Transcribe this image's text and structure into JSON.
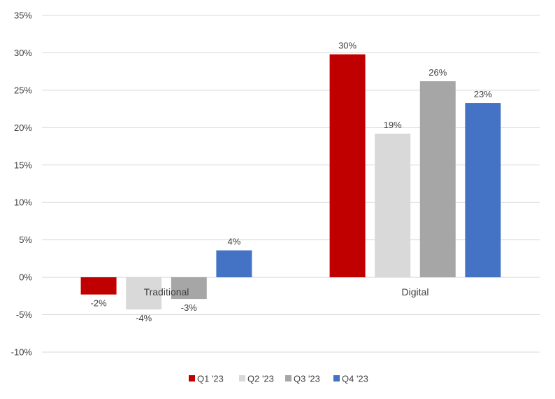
{
  "chart_data": {
    "type": "bar",
    "categories": [
      "Traditional",
      "Digital"
    ],
    "series": [
      {
        "name": "Q1 '23",
        "values": [
          -2.3,
          29.8
        ],
        "labels": [
          "-2%",
          "30%"
        ],
        "color": "#c00000"
      },
      {
        "name": "Q2 '23",
        "values": [
          -4.3,
          19.2
        ],
        "labels": [
          "-4%",
          "19%"
        ],
        "color": "#d9d9d9"
      },
      {
        "name": "Q3 '23",
        "values": [
          -2.9,
          26.2
        ],
        "labels": [
          "-3%",
          "26%"
        ],
        "color": "#a6a6a6"
      },
      {
        "name": "Q4 '23",
        "values": [
          3.6,
          23.3
        ],
        "labels": [
          "4%",
          "23%"
        ],
        "color": "#4472c4"
      }
    ],
    "ylim": [
      -10,
      35
    ],
    "yticks": [
      {
        "value": -10,
        "label": "-10%"
      },
      {
        "value": -5,
        "label": "-5%"
      },
      {
        "value": 0,
        "label": "0%"
      },
      {
        "value": 5,
        "label": "5%"
      },
      {
        "value": 10,
        "label": "10%"
      },
      {
        "value": 15,
        "label": "15%"
      },
      {
        "value": 20,
        "label": "20%"
      },
      {
        "value": 25,
        "label": "25%"
      },
      {
        "value": 30,
        "label": "30%"
      },
      {
        "value": 35,
        "label": "35%"
      }
    ],
    "grid": true,
    "legend_position": "bottom",
    "gridline_color": "#d9d9d9"
  }
}
